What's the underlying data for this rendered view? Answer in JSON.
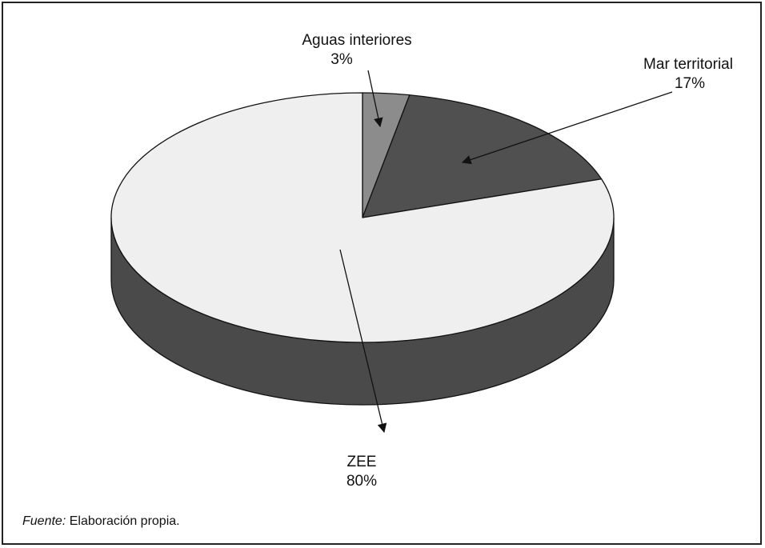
{
  "chart_data": {
    "type": "pie",
    "style": "3d",
    "slices": [
      {
        "label": "Aguas interiores",
        "value": 3,
        "value_label": "3%",
        "color": "#8c8c8c"
      },
      {
        "label": "Mar territorial",
        "value": 17,
        "value_label": "17%",
        "color": "#505050"
      },
      {
        "label": "ZEE",
        "value": 80,
        "value_label": "80%",
        "color": "#efefef"
      }
    ],
    "side_color": "#4a4a4a",
    "outline_color": "#111111"
  },
  "source": {
    "prefix": "Fuente:",
    "text": "Elaboración propia."
  }
}
